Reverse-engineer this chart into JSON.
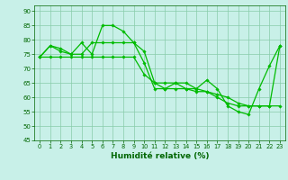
{
  "title": "",
  "xlabel": "Humidité relative (%)",
  "ylabel": "",
  "background_color": "#c8f0e8",
  "grid_color": "#88ccaa",
  "line_color": "#00bb00",
  "xlim": [
    -0.5,
    23.5
  ],
  "ylim": [
    45,
    92
  ],
  "yticks": [
    45,
    50,
    55,
    60,
    65,
    70,
    75,
    80,
    85,
    90
  ],
  "xticks": [
    0,
    1,
    2,
    3,
    4,
    5,
    6,
    7,
    8,
    9,
    10,
    11,
    12,
    13,
    14,
    15,
    16,
    17,
    18,
    19,
    20,
    21,
    22,
    23
  ],
  "series": [
    [
      74,
      78,
      76,
      75,
      79,
      75,
      85,
      85,
      83,
      79,
      72,
      63,
      63,
      65,
      63,
      63,
      66,
      63,
      57,
      55,
      54,
      63,
      71,
      78
    ],
    [
      74,
      78,
      77,
      75,
      75,
      79,
      79,
      79,
      79,
      79,
      76,
      65,
      65,
      65,
      65,
      63,
      62,
      60,
      58,
      57,
      57,
      57,
      57,
      78
    ],
    [
      74,
      74,
      74,
      74,
      74,
      74,
      74,
      74,
      74,
      74,
      68,
      65,
      63,
      63,
      63,
      62,
      62,
      61,
      60,
      58,
      57,
      57,
      57,
      57
    ]
  ]
}
